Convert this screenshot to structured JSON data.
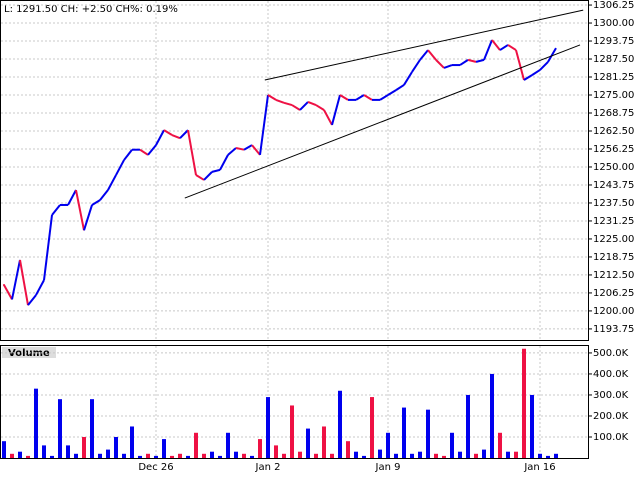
{
  "header": "L: 1291.50 CH: +2.50 CH%: 0.19%",
  "chart_data": [
    {
      "type": "line",
      "up_color": "#0000ee",
      "down_color": "#ee1144",
      "grid": true,
      "categories": [
        null,
        null,
        null,
        null,
        null,
        null,
        null,
        null,
        null,
        null,
        null,
        null,
        null,
        null,
        null,
        null,
        null,
        null,
        null,
        "Dec 26",
        null,
        null,
        null,
        null,
        null,
        null,
        null,
        null,
        null,
        null,
        null,
        null,
        null,
        "Jan 2",
        null,
        null,
        null,
        null,
        null,
        null,
        null,
        null,
        null,
        null,
        null,
        null,
        null,
        null,
        "Jan 9",
        null,
        null,
        null,
        null,
        null,
        null,
        null,
        null,
        null,
        null,
        null,
        null,
        null,
        null,
        null,
        null,
        null,
        null,
        "Jan 16",
        null,
        null
      ],
      "series": [
        {
          "values": [
            1209,
            1204,
            1217.7,
            1202,
            1205.5,
            1210.7,
            1233.3,
            1236.8,
            1236.8,
            1242,
            1228,
            1236.8,
            1238.5,
            1242,
            1247.2,
            1252.4,
            1256,
            1256,
            1254.2,
            1257.6,
            1262.8,
            1261.1,
            1260,
            1262.8,
            1247.2,
            1245.5,
            1248.3,
            1249,
            1254.2,
            1256.6,
            1256,
            1257.6,
            1254.2,
            1275,
            1273.3,
            1272.3,
            1271.5,
            1269.8,
            1272.6,
            1271.5,
            1269.8,
            1264.6,
            1275,
            1273.3,
            1273.3,
            1275,
            1273.3,
            1273.3,
            1275,
            1276.7,
            1278.5,
            1283,
            1287.2,
            1290.6,
            1287.2,
            1284.4,
            1285.4,
            1285.4,
            1287.2,
            1286.5,
            1287.2,
            1294.1,
            1290.6,
            1292.4,
            1290.6,
            1280.2,
            1281.9,
            1283.7,
            1286.5,
            1291.3
          ]
        }
      ],
      "trendlines": [
        {
          "x": [
            32.6,
            72.4
          ],
          "y": [
            1280.2,
            1304.5
          ]
        },
        {
          "x": [
            22.6,
            72
          ],
          "y": [
            1239.2,
            1292.4
          ]
        }
      ],
      "ylim": [
        1189.9,
        1308
      ],
      "yticks": [
        1306.25,
        {
          "value": 1300,
          "label": "1300.00"
        },
        1293.75,
        {
          "value": 1287.5,
          "label": "1287.50"
        },
        1281.25,
        {
          "value": 1275,
          "label": "1275.00"
        },
        1268.75,
        {
          "value": 1262.5,
          "label": "1262.50"
        },
        1256.25,
        {
          "value": 1250,
          "label": "1250.00"
        },
        1243.75,
        {
          "value": 1237.5,
          "label": "1237.50"
        },
        1231.25,
        {
          "value": 1225,
          "label": "1225.00"
        },
        1218.75,
        {
          "value": 1212.5,
          "label": "1212.50"
        },
        1206.25,
        {
          "value": 1200,
          "label": "1200.00"
        },
        1193.75
      ]
    },
    {
      "type": "bar",
      "title": "Volume",
      "grid": true,
      "values": [
        80000,
        20000,
        30000,
        10000,
        330000,
        60000,
        10000,
        280000,
        60000,
        20000,
        100000,
        280000,
        20000,
        40000,
        100000,
        20000,
        150000,
        10000,
        20000,
        10000,
        90000,
        10000,
        20000,
        10000,
        120000,
        20000,
        30000,
        10000,
        120000,
        30000,
        20000,
        10000,
        90000,
        290000,
        60000,
        20000,
        250000,
        30000,
        140000,
        20000,
        150000,
        20000,
        320000,
        80000,
        30000,
        10000,
        290000,
        40000,
        120000,
        20000,
        240000,
        20000,
        30000,
        230000,
        20000,
        10000,
        120000,
        30000,
        300000,
        20000,
        40000,
        400000,
        120000,
        30000,
        30000,
        520000,
        300000,
        20000,
        10000,
        20000
      ],
      "ylim": [
        0,
        533000
      ],
      "yticks": [
        {
          "value": 100000,
          "label": "100.0K"
        },
        {
          "value": 200000,
          "label": "200.0K"
        },
        {
          "value": 300000,
          "label": "300.0K"
        },
        {
          "value": 400000,
          "label": "400.0K"
        },
        {
          "value": 500000,
          "label": "500.0K"
        }
      ]
    }
  ]
}
